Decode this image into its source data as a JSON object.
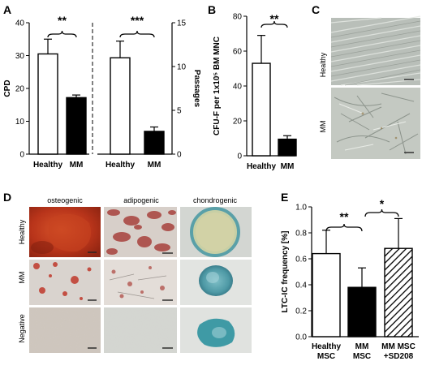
{
  "panels": {
    "A": "A",
    "B": "B",
    "C": "C",
    "D": "D",
    "E": "E"
  },
  "chart_data": [
    {
      "id": "A-left",
      "type": "bar",
      "categories": [
        "Healthy",
        "MM"
      ],
      "values": [
        30.5,
        17.2
      ],
      "errors": [
        4.5,
        0.8
      ],
      "colors": [
        "#ffffff",
        "#000000"
      ],
      "ylabel": "CPD",
      "ylim": [
        0,
        40
      ],
      "yticks": [
        "0",
        "10",
        "20",
        "30",
        "40"
      ],
      "significance": "**"
    },
    {
      "id": "A-right",
      "type": "bar",
      "categories": [
        "Healthy",
        "MM"
      ],
      "values": [
        11.0,
        2.6
      ],
      "errors": [
        1.9,
        0.5
      ],
      "colors": [
        "#ffffff",
        "#000000"
      ],
      "ylabel": "Passages",
      "ylim": [
        0,
        15
      ],
      "yticks": [
        "0",
        "5",
        "10",
        "15"
      ],
      "significance": "***"
    },
    {
      "id": "B",
      "type": "bar",
      "categories": [
        "Healthy",
        "MM"
      ],
      "values": [
        53,
        9.5
      ],
      "errors": [
        16,
        2
      ],
      "colors": [
        "#ffffff",
        "#000000"
      ],
      "ylabel": "CFU-F per 1x10⁵ BM MNC",
      "ylim": [
        0,
        80
      ],
      "yticks": [
        "0",
        "20",
        "40",
        "60",
        "80"
      ],
      "significance": "**"
    },
    {
      "id": "E",
      "type": "bar",
      "categories": [
        [
          "Healthy",
          "MSC"
        ],
        [
          "MM",
          "MSC"
        ],
        [
          "MM MSC",
          "+SD208"
        ]
      ],
      "values": [
        0.64,
        0.38,
        0.68
      ],
      "errors": [
        0.18,
        0.15,
        0.23
      ],
      "colors": [
        "#ffffff",
        "#000000",
        "hatched"
      ],
      "ylabel": "LTC-IC frequency [%]",
      "ylim": [
        0,
        1.0
      ],
      "yticks": [
        "0.0",
        "0.2",
        "0.4",
        "0.6",
        "0.8",
        "1.0"
      ],
      "significance": [
        "**",
        "*"
      ]
    }
  ],
  "micrographs_c": {
    "rows": [
      "Healthy",
      "MM"
    ]
  },
  "micrographs_d": {
    "columns": [
      "osteogenic",
      "adipogenic",
      "chondrogenic"
    ],
    "rows": [
      "Healthy",
      "MM",
      "Negative"
    ]
  }
}
